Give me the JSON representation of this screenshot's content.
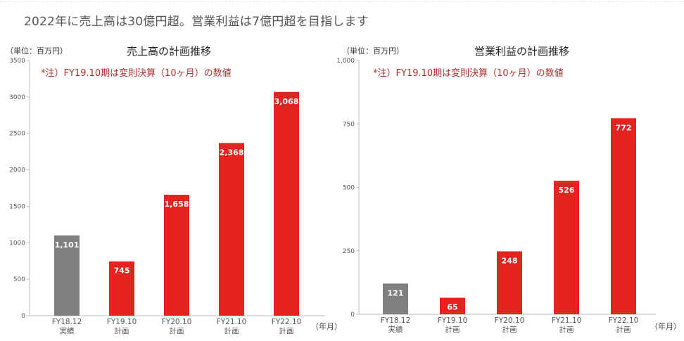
{
  "headline": "2022年に売上高は30億円超。営業利益は7億円超を目指します",
  "colors": {
    "actual": "#7f7f7f",
    "plan": "#e5221f",
    "note": "#b03030"
  },
  "chart_data": [
    {
      "type": "bar",
      "title": "売上高の計画推移",
      "unit_label": "（単位：百万円）",
      "note": "*注）FY19.10期は変則決算（10ヶ月）の数値",
      "x_unit": "（年月）",
      "categories": [
        "FY18.12",
        "FY19.10",
        "FY20.10",
        "FY21.10",
        "FY22.10"
      ],
      "category_sub": [
        "実績",
        "計画",
        "計画",
        "計画",
        "計画"
      ],
      "values": [
        1101,
        745,
        1658,
        2368,
        3068
      ],
      "value_labels": [
        "1,101",
        "745",
        "1,658",
        "2,368",
        "3,068"
      ],
      "bar_kind": [
        "actual",
        "plan",
        "plan",
        "plan",
        "plan"
      ],
      "ylim": [
        0,
        3500
      ],
      "yticks": [
        0,
        500,
        1000,
        1500,
        2000,
        2500,
        3000,
        3500
      ],
      "ytick_labels": [
        "0",
        "500",
        "1000",
        "1500",
        "2000",
        "2500",
        "3000",
        "3500"
      ]
    },
    {
      "type": "bar",
      "title": "営業利益の計画推移",
      "unit_label": "（単位：百万円）",
      "note": "*注）FY19.10期は変則決算（10ヶ月）の数値",
      "x_unit": "（年月）",
      "categories": [
        "FY18.12",
        "FY19.10",
        "FY20.10",
        "FY21.10",
        "FY22.10"
      ],
      "category_sub": [
        "実績",
        "計画",
        "計画",
        "計画",
        "計画"
      ],
      "values": [
        121,
        65,
        248,
        526,
        772
      ],
      "value_labels": [
        "121",
        "65",
        "248",
        "526",
        "772"
      ],
      "bar_kind": [
        "actual",
        "plan",
        "plan",
        "plan",
        "plan"
      ],
      "ylim": [
        0,
        1000
      ],
      "yticks": [
        0,
        250,
        500,
        750,
        1000
      ],
      "ytick_labels": [
        "0",
        "250",
        "500",
        "750",
        "1,000"
      ]
    }
  ]
}
